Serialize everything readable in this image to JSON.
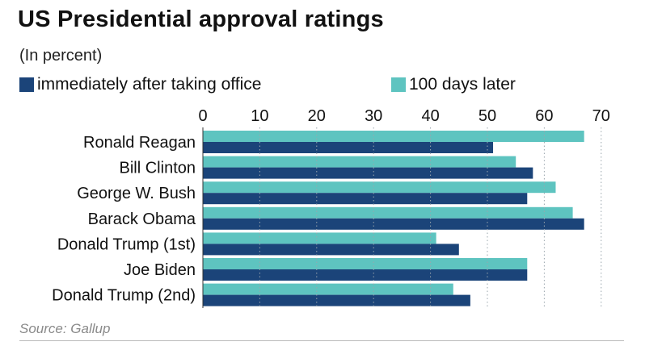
{
  "chart_data": {
    "type": "bar",
    "orientation": "horizontal",
    "title": "US Presidential approval ratings",
    "subtitle": "(In percent)",
    "categories": [
      "Ronald Reagan",
      "Bill Clinton",
      "George W. Bush",
      "Barack Obama",
      "Donald Trump (1st)",
      "Joe Biden",
      "Donald Trump (2nd)"
    ],
    "series": [
      {
        "name": "100 days later",
        "color": "#5ec4c0",
        "values": [
          67,
          55,
          62,
          65,
          41,
          57,
          44
        ]
      },
      {
        "name": "immediately after taking office",
        "color": "#1b4479",
        "values": [
          51,
          58,
          57,
          67,
          45,
          57,
          47
        ]
      }
    ],
    "xlim": [
      0,
      70
    ],
    "xticks": [
      "0",
      "10",
      "20",
      "30",
      "40",
      "50",
      "60",
      "70"
    ],
    "grid": "dotted-vertical",
    "legend_position": "top"
  },
  "legend": [
    {
      "label": "immediately after taking office",
      "color": "#1b4479"
    },
    {
      "label": "100 days later",
      "color": "#5ec4c0"
    }
  ],
  "source": "Source: Gallup"
}
